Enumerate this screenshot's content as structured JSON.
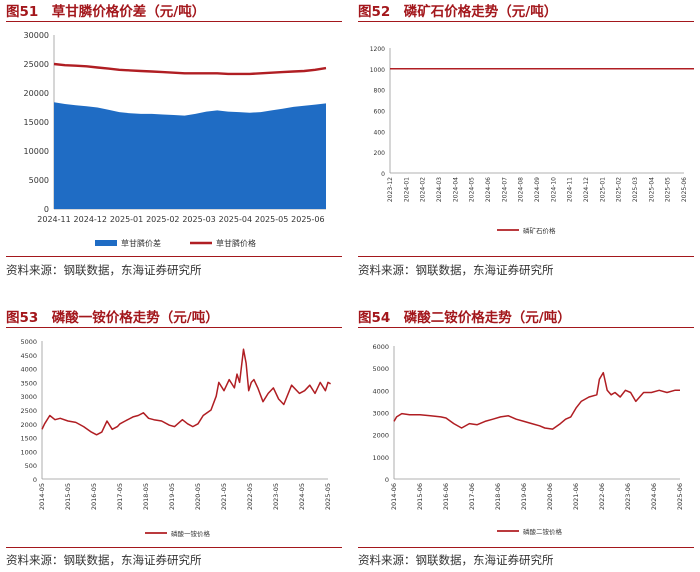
{
  "charts": [
    {
      "title": "图51　草甘膦价格价差（元/吨）",
      "source": "资料来源：钢联数据，东海证券研究所",
      "chart_data": {
        "type": "area",
        "categories": [
          "2024-11",
          "2024-12",
          "2025-01",
          "2025-02",
          "2025-03",
          "2025-04",
          "2025-05",
          "2025-06"
        ],
        "y_ticks": [
          "0",
          "5000",
          "10000",
          "15000",
          "20000",
          "25000",
          "30000"
        ],
        "ylim": [
          0,
          30000
        ],
        "grid": false,
        "legend_position": "bottom",
        "series": [
          {
            "name": "草甘膦价差",
            "type": "area",
            "color": "#1f6cc4",
            "x": [
              0,
              0.3,
              0.6,
              0.9,
              1.2,
              1.5,
              1.8,
              2.1,
              2.4,
              2.7,
              3.0,
              3.3,
              3.6,
              3.9,
              4.2,
              4.5,
              4.8,
              5.1,
              5.4,
              5.7,
              6.0,
              6.3,
              6.6,
              6.9,
              7.2,
              7.5
            ],
            "values": [
              18400,
              18100,
              17900,
              17700,
              17500,
              17100,
              16700,
              16500,
              16400,
              16400,
              16300,
              16200,
              16100,
              16400,
              16800,
              17000,
              16800,
              16700,
              16600,
              16700,
              17000,
              17300,
              17600,
              17800,
              18000,
              18200
            ]
          },
          {
            "name": "草甘膦价格",
            "type": "line",
            "color": "#b01e23",
            "x": [
              0,
              0.3,
              0.6,
              0.9,
              1.2,
              1.5,
              1.8,
              2.1,
              2.4,
              2.7,
              3.0,
              3.3,
              3.6,
              3.9,
              4.2,
              4.5,
              4.8,
              5.1,
              5.4,
              5.7,
              6.0,
              6.3,
              6.6,
              6.9,
              7.2,
              7.5
            ],
            "values": [
              25000,
              24800,
              24700,
              24600,
              24400,
              24200,
              24000,
              23900,
              23800,
              23700,
              23600,
              23500,
              23400,
              23400,
              23400,
              23400,
              23300,
              23300,
              23300,
              23400,
              23500,
              23600,
              23700,
              23800,
              24000,
              24300
            ]
          }
        ]
      }
    },
    {
      "title": "图52　磷矿石价格走势（元/吨）",
      "source": "资料来源：钢联数据，东海证券研究所",
      "chart_data": {
        "type": "line",
        "categories": [
          "2023-12",
          "2024-01",
          "2024-02",
          "2024-03",
          "2024-04",
          "2024-05",
          "2024-06",
          "2024-07",
          "2024-08",
          "2024-09",
          "2024-10",
          "2024-11",
          "2024-12",
          "2025-01",
          "2025-02",
          "2025-03",
          "2025-04",
          "2025-05",
          "2025-06"
        ],
        "y_ticks": [
          "0",
          "200",
          "400",
          "600",
          "800",
          "1000",
          "1200"
        ],
        "ylim": [
          0,
          1200
        ],
        "grid": false,
        "legend_position": "bottom",
        "series": [
          {
            "name": "磷矿石价格",
            "type": "line",
            "color": "#b01e23",
            "x": [
              0,
              19
            ],
            "values": [
              1000,
              1000
            ]
          }
        ]
      }
    },
    {
      "title": "图53　磷酸一铵价格走势（元/吨）",
      "source": "资料来源：钢联数据，东海证券研究所",
      "chart_data": {
        "type": "line",
        "categories": [
          "2014-05",
          "2015-05",
          "2016-05",
          "2017-05",
          "2018-05",
          "2019-05",
          "2020-05",
          "2021-05",
          "2022-05",
          "2023-05",
          "2024-05",
          "2025-05"
        ],
        "y_ticks": [
          "0",
          "500",
          "1000",
          "1500",
          "2000",
          "2500",
          "3000",
          "3500",
          "4000",
          "4500",
          "5000"
        ],
        "ylim": [
          0,
          5000
        ],
        "grid": false,
        "legend_position": "bottom",
        "series": [
          {
            "name": "磷酸一铵价格",
            "type": "line",
            "color": "#b01e23",
            "x": [
              0,
              0.1,
              0.3,
              0.5,
              0.7,
              1.0,
              1.3,
              1.6,
              1.9,
              2.1,
              2.3,
              2.5,
              2.7,
              2.9,
              3.0,
              3.2,
              3.5,
              3.7,
              3.9,
              4.1,
              4.3,
              4.6,
              4.9,
              5.1,
              5.4,
              5.6,
              5.8,
              6.0,
              6.2,
              6.5,
              6.7,
              6.8,
              7.0,
              7.2,
              7.4,
              7.5,
              7.6,
              7.75,
              7.85,
              7.95,
              8.05,
              8.15,
              8.3,
              8.5,
              8.7,
              8.9,
              9.1,
              9.3,
              9.6,
              9.9,
              10.1,
              10.3,
              10.5,
              10.7,
              10.9,
              11.0,
              11.1
            ],
            "values": [
              1800,
              2000,
              2300,
              2150,
              2200,
              2100,
              2050,
              1900,
              1700,
              1600,
              1700,
              2100,
              1800,
              1900,
              2000,
              2100,
              2250,
              2300,
              2400,
              2200,
              2150,
              2100,
              1950,
              1900,
              2150,
              2000,
              1900,
              2000,
              2300,
              2500,
              3000,
              3500,
              3200,
              3600,
              3300,
              3800,
              3500,
              4700,
              4200,
              3200,
              3500,
              3600,
              3300,
              2800,
              3100,
              3300,
              2900,
              2700,
              3400,
              3100,
              3200,
              3400,
              3100,
              3500,
              3200,
              3500,
              3450
            ]
          }
        ]
      }
    },
    {
      "title": "图54　磷酸二铵价格走势（元/吨）",
      "source": "资料来源：钢联数据，东海证券研究所",
      "chart_data": {
        "type": "line",
        "categories": [
          "2014-06",
          "2015-06",
          "2016-06",
          "2017-06",
          "2018-06",
          "2019-06",
          "2020-06",
          "2021-06",
          "2022-06",
          "2023-06",
          "2024-06",
          "2025-06"
        ],
        "y_ticks": [
          "0",
          "1000",
          "2000",
          "3000",
          "4000",
          "5000",
          "6000"
        ],
        "ylim": [
          0,
          6000
        ],
        "grid": false,
        "legend_position": "bottom",
        "series": [
          {
            "name": "磷酸二铵价格",
            "type": "line",
            "color": "#b01e23",
            "x": [
              0,
              0.1,
              0.3,
              0.6,
              1.0,
              1.4,
              1.8,
              2.0,
              2.3,
              2.6,
              2.9,
              3.2,
              3.5,
              3.8,
              4.1,
              4.4,
              4.7,
              5.0,
              5.3,
              5.6,
              5.8,
              6.1,
              6.4,
              6.6,
              6.8,
              7.0,
              7.2,
              7.5,
              7.8,
              7.9,
              8.05,
              8.2,
              8.35,
              8.5,
              8.7,
              8.9,
              9.1,
              9.3,
              9.6,
              9.9,
              10.2,
              10.5,
              10.8,
              11.0
            ],
            "values": [
              2600,
              2800,
              2950,
              2900,
              2900,
              2850,
              2800,
              2750,
              2500,
              2300,
              2500,
              2450,
              2600,
              2700,
              2800,
              2850,
              2700,
              2600,
              2500,
              2400,
              2300,
              2250,
              2500,
              2700,
              2800,
              3200,
              3500,
              3700,
              3800,
              4500,
              4800,
              4000,
              3800,
              3900,
              3700,
              4000,
              3900,
              3500,
              3900,
              3900,
              4000,
              3900,
              4000,
              4000
            ]
          }
        ]
      }
    }
  ]
}
